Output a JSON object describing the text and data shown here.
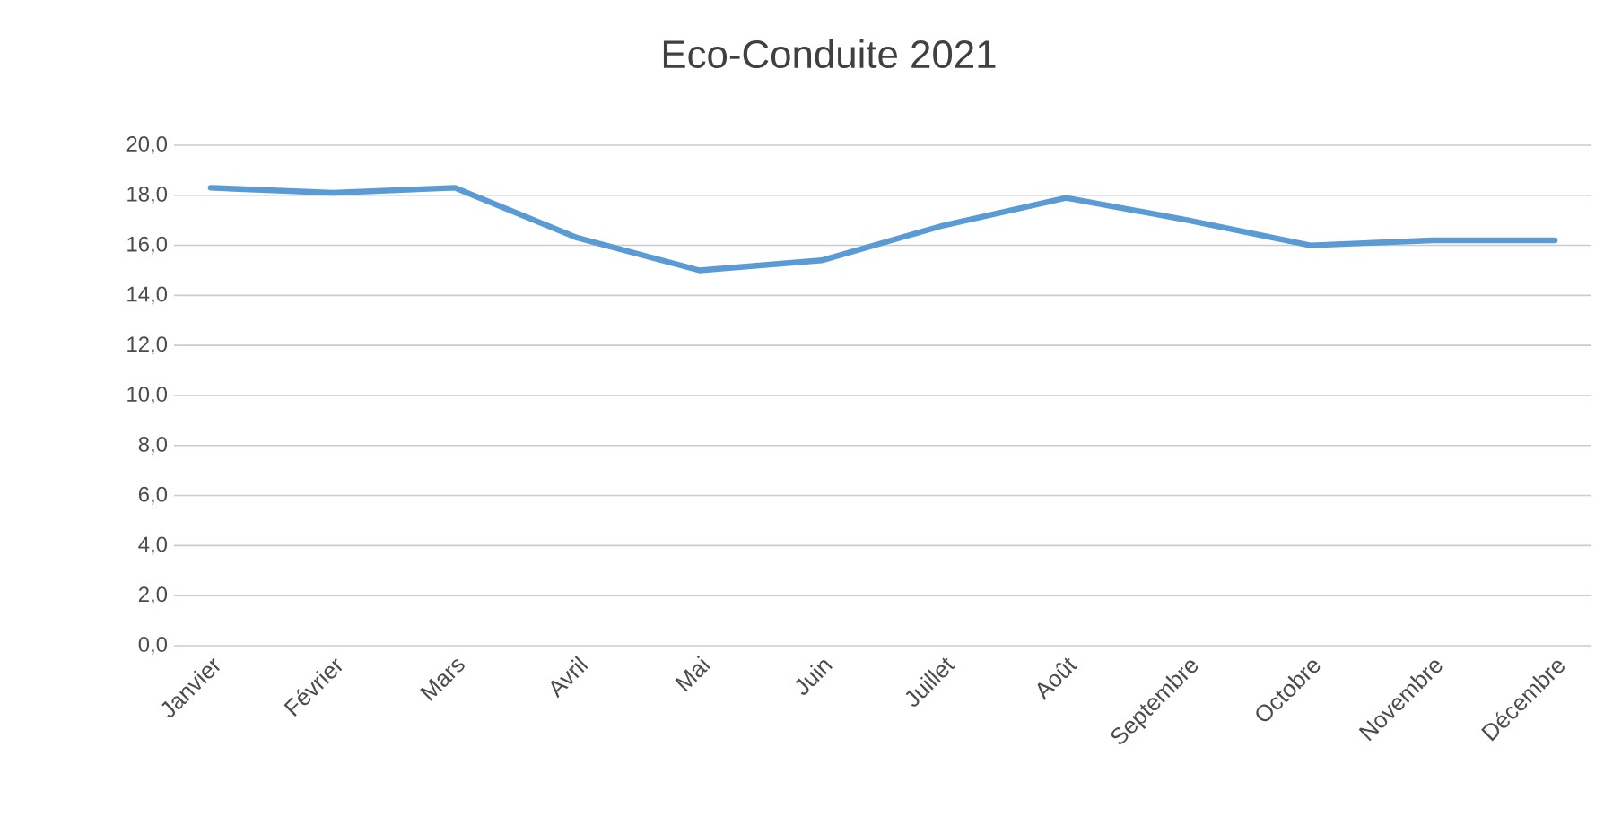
{
  "chart_data": {
    "type": "line",
    "title": "Eco-Conduite 2021",
    "categories": [
      "Janvier",
      "Février",
      "Mars",
      "Avril",
      "Mai",
      "Juin",
      "Juillet",
      "Août",
      "Septembre",
      "Octobre",
      "Novembre",
      "Décembre"
    ],
    "series": [
      {
        "color": "#5b9bd5",
        "values": [
          18.3,
          18.1,
          18.3,
          16.3,
          15.0,
          15.4,
          16.8,
          17.9,
          17.0,
          16.0,
          16.2,
          16.2
        ]
      }
    ],
    "ylim": [
      0,
      20
    ],
    "yticks": [
      {
        "value": 0,
        "label": "0,0"
      },
      {
        "value": 2,
        "label": "2,0"
      },
      {
        "value": 4,
        "label": "4,0"
      },
      {
        "value": 6,
        "label": "6,0"
      },
      {
        "value": 8,
        "label": "8,0"
      },
      {
        "value": 10,
        "label": "10,0"
      },
      {
        "value": 12,
        "label": "12,0"
      },
      {
        "value": 14,
        "label": "14,0"
      },
      {
        "value": 16,
        "label": "16,0"
      },
      {
        "value": 18,
        "label": "18,0"
      },
      {
        "value": 20,
        "label": "20,0"
      }
    ],
    "grid": "y",
    "marker": "none",
    "line_style": "solid"
  }
}
